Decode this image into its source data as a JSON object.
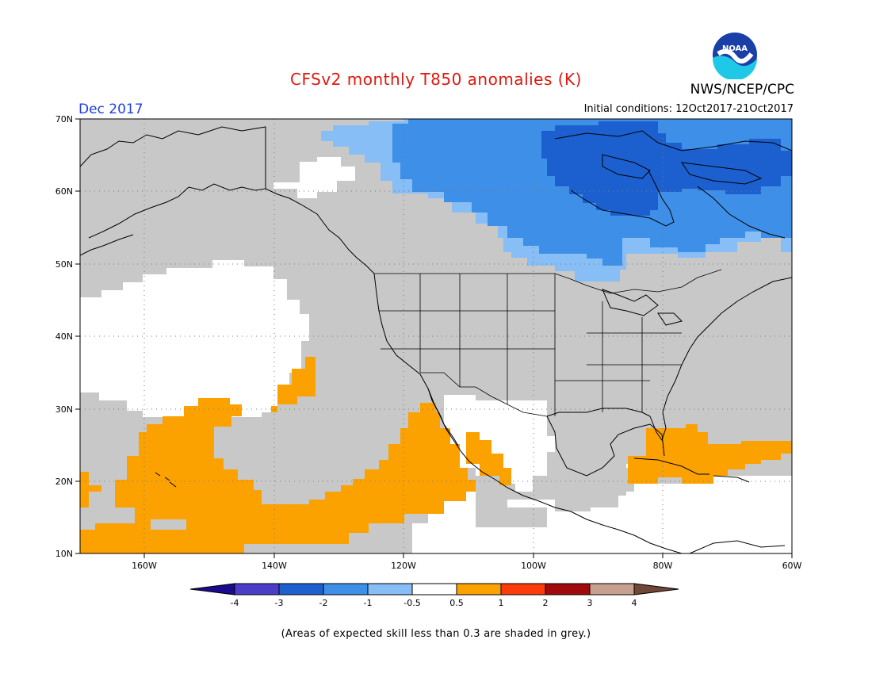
{
  "header": {
    "title": "CFSv2 monthly T850 anomalies (K)",
    "month": "Dec 2017",
    "initial_conditions": "Initial conditions: 12Oct2017-21Oct2017",
    "agency": "NWS/NCEP/CPC",
    "logo_text": "NOAA"
  },
  "map": {
    "lat_labels": [
      "70N",
      "60N",
      "50N",
      "40N",
      "30N",
      "20N",
      "10N"
    ],
    "lon_labels": [
      "160W",
      "140W",
      "120W",
      "100W",
      "80W",
      "60W"
    ],
    "colors": {
      "grey_low_skill": "#c8c8c8",
      "neutral": "#ffffff",
      "cold_0_5_to_1": "#86bef5",
      "cold_1_to_2": "#3e8fe8",
      "cold_2_to_3": "#1c60d0",
      "warm_0_5_to_1": "#fba100",
      "coastline": "#000000"
    }
  },
  "colorbar": {
    "labels": [
      "-4",
      "-3",
      "-2",
      "-1",
      "-0.5",
      "0.5",
      "1",
      "2",
      "3",
      "4"
    ],
    "colors": [
      "#1a0a8e",
      "#4a3ec8",
      "#1c60d0",
      "#3e8fe8",
      "#86bef5",
      "#ffffff",
      "#fba100",
      "#fb3c0a",
      "#a00a0a",
      "#c8a090",
      "#704838"
    ]
  },
  "footnote": "(Areas of expected skill less than 0.3 are shaded in grey.)"
}
